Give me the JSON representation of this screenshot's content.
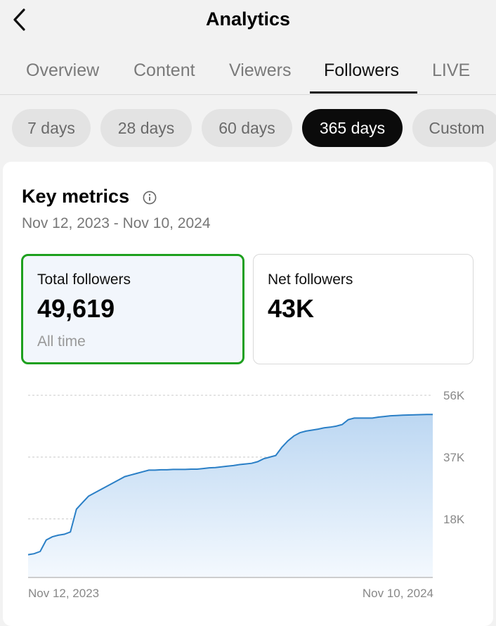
{
  "header": {
    "title": "Analytics"
  },
  "tabs": [
    "Overview",
    "Content",
    "Viewers",
    "Followers",
    "LIVE"
  ],
  "active_tab": "Followers",
  "ranges": [
    "7 days",
    "28 days",
    "60 days",
    "365 days",
    "Custom"
  ],
  "active_range": "365 days",
  "key_metrics": {
    "title": "Key metrics",
    "date_range": "Nov 12, 2023 - Nov 10, 2024",
    "total": {
      "label": "Total followers",
      "value": "49,619",
      "sub": "All time"
    },
    "net": {
      "label": "Net followers",
      "value": "43K"
    }
  },
  "chart_data": {
    "type": "area",
    "x_labels": [
      "Nov 12, 2023",
      "Nov 10, 2024"
    ],
    "y_ticks": [
      {
        "value": 56000,
        "label": "56K"
      },
      {
        "value": 37000,
        "label": "37K"
      },
      {
        "value": 18000,
        "label": "18K"
      }
    ],
    "ylim": [
      0,
      56000
    ],
    "series": [
      {
        "color": "#2a7fc6",
        "values": [
          7000,
          7300,
          8000,
          11500,
          12500,
          13000,
          13300,
          14000,
          21000,
          23000,
          25000,
          26000,
          27000,
          28000,
          29000,
          30000,
          31000,
          31500,
          32000,
          32500,
          33000,
          33000,
          33100,
          33100,
          33200,
          33200,
          33200,
          33300,
          33300,
          33500,
          33700,
          33800,
          34000,
          34200,
          34400,
          34700,
          34900,
          35100,
          35600,
          36500,
          37000,
          37500,
          40000,
          42000,
          43500,
          44500,
          45000,
          45300,
          45600,
          46000,
          46200,
          46500,
          47000,
          48500,
          49000,
          49000,
          49000,
          49000,
          49300,
          49500,
          49700,
          49800,
          49900,
          49950,
          50000,
          50050,
          50100,
          50100
        ]
      }
    ]
  }
}
